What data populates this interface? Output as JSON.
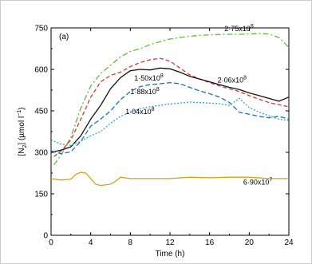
{
  "chart_data": {
    "type": "line",
    "panel_label": "(a)",
    "xlabel": "Time (h)",
    "ylabel": {
      "main": "[N",
      "sub": "2",
      "rest": "] (µmol l",
      "sup": "−1",
      "end": ")"
    },
    "xlim": [
      0,
      24
    ],
    "ylim": [
      0,
      750
    ],
    "x_ticks": [
      "0",
      "4",
      "8",
      "12",
      "16",
      "20",
      "24"
    ],
    "y_ticks": [
      "0",
      "150",
      "300",
      "450",
      "600",
      "750"
    ],
    "grid": false,
    "series": [
      {
        "name": "2·75x10⁸",
        "label": "2·75x10",
        "label_exp": "8",
        "color": "#5bbf3a",
        "dash": "7,3,2,3",
        "label_at": [
          17.5,
          738
        ],
        "x": [
          0.3,
          1,
          2,
          3,
          4,
          5,
          6,
          7,
          8,
          9,
          10,
          11,
          12,
          13,
          14,
          15,
          16,
          17,
          18,
          19,
          20,
          21,
          22,
          23,
          24
        ],
        "y": [
          255,
          290,
          355,
          460,
          540,
          585,
          615,
          645,
          665,
          675,
          690,
          700,
          710,
          715,
          720,
          723,
          725,
          726,
          727,
          727,
          728,
          730,
          728,
          715,
          680
        ]
      },
      {
        "name": "2·06x10⁸",
        "label": "2·06x10",
        "label_exp": "8",
        "color": "#e0342a",
        "dash": "5,3",
        "label_at": [
          16.8,
          553
        ],
        "x": [
          0.3,
          1,
          2,
          3,
          4,
          5,
          6,
          7,
          8,
          9,
          10,
          11,
          12,
          13,
          14,
          15,
          16,
          17,
          18,
          19,
          20,
          21,
          22,
          23,
          24
        ],
        "y": [
          285,
          305,
          345,
          420,
          500,
          555,
          578,
          590,
          610,
          625,
          635,
          640,
          630,
          605,
          580,
          565,
          552,
          540,
          530,
          520,
          505,
          492,
          480,
          472,
          465
        ]
      },
      {
        "name": "1·50x10⁸",
        "label": "1·50x10",
        "label_exp": "8",
        "color": "#111111",
        "dash": "",
        "label_at": [
          8.4,
          560
        ],
        "x": [
          0,
          1,
          2,
          3,
          4,
          5,
          6,
          7,
          8,
          9,
          10,
          11,
          12,
          13,
          14,
          15,
          16,
          17,
          18,
          19,
          20,
          21,
          22,
          23,
          24
        ],
        "y": [
          300,
          308,
          320,
          360,
          420,
          470,
          530,
          570,
          595,
          600,
          598,
          605,
          602,
          590,
          575,
          565,
          555,
          545,
          535,
          527,
          515,
          505,
          495,
          485,
          500
        ]
      },
      {
        "name": "1·88x10⁸",
        "label": "1·88x10",
        "label_exp": "8",
        "color": "#1f6fb8",
        "dash": "6,3",
        "label_at": [
          8.0,
          510
        ],
        "x": [
          0,
          1,
          2,
          3,
          4,
          5,
          6,
          7,
          8,
          9,
          10,
          11,
          12,
          13,
          14,
          15,
          16,
          17,
          18,
          19,
          20,
          21,
          22,
          23,
          24
        ],
        "y": [
          305,
          295,
          302,
          340,
          395,
          420,
          450,
          490,
          520,
          538,
          545,
          548,
          552,
          548,
          535,
          522,
          512,
          500,
          480,
          445,
          438,
          430,
          425,
          430,
          420
        ]
      },
      {
        "name": "1·04x10⁸",
        "label": "1·04x10",
        "label_exp": "8",
        "color": "#2aa7d8",
        "dash": "2,2",
        "label_at": [
          7.5,
          438
        ],
        "x": [
          0,
          1,
          2,
          3,
          4,
          5,
          6,
          7,
          8,
          9,
          10,
          11,
          12,
          13,
          14,
          15,
          16,
          17,
          18,
          19,
          20,
          21,
          22,
          23,
          24
        ],
        "y": [
          345,
          330,
          325,
          340,
          360,
          375,
          405,
          430,
          445,
          458,
          465,
          470,
          475,
          478,
          482,
          480,
          478,
          476,
          470,
          495,
          462,
          445,
          432,
          420,
          415
        ]
      },
      {
        "name": "6·90x10⁷",
        "label": "6·90x10",
        "label_exp": "7",
        "color": "#d9a018",
        "dash": "",
        "label_at": [
          19.4,
          183
        ],
        "x": [
          0,
          1,
          2,
          2.5,
          3,
          3.5,
          4,
          4.5,
          5,
          6,
          6.5,
          7,
          8,
          10,
          12,
          14,
          16,
          18,
          20,
          22,
          24
        ],
        "y": [
          205,
          200,
          203,
          220,
          228,
          225,
          205,
          185,
          180,
          185,
          195,
          210,
          205,
          205,
          205,
          210,
          208,
          210,
          210,
          205,
          205
        ]
      }
    ]
  }
}
